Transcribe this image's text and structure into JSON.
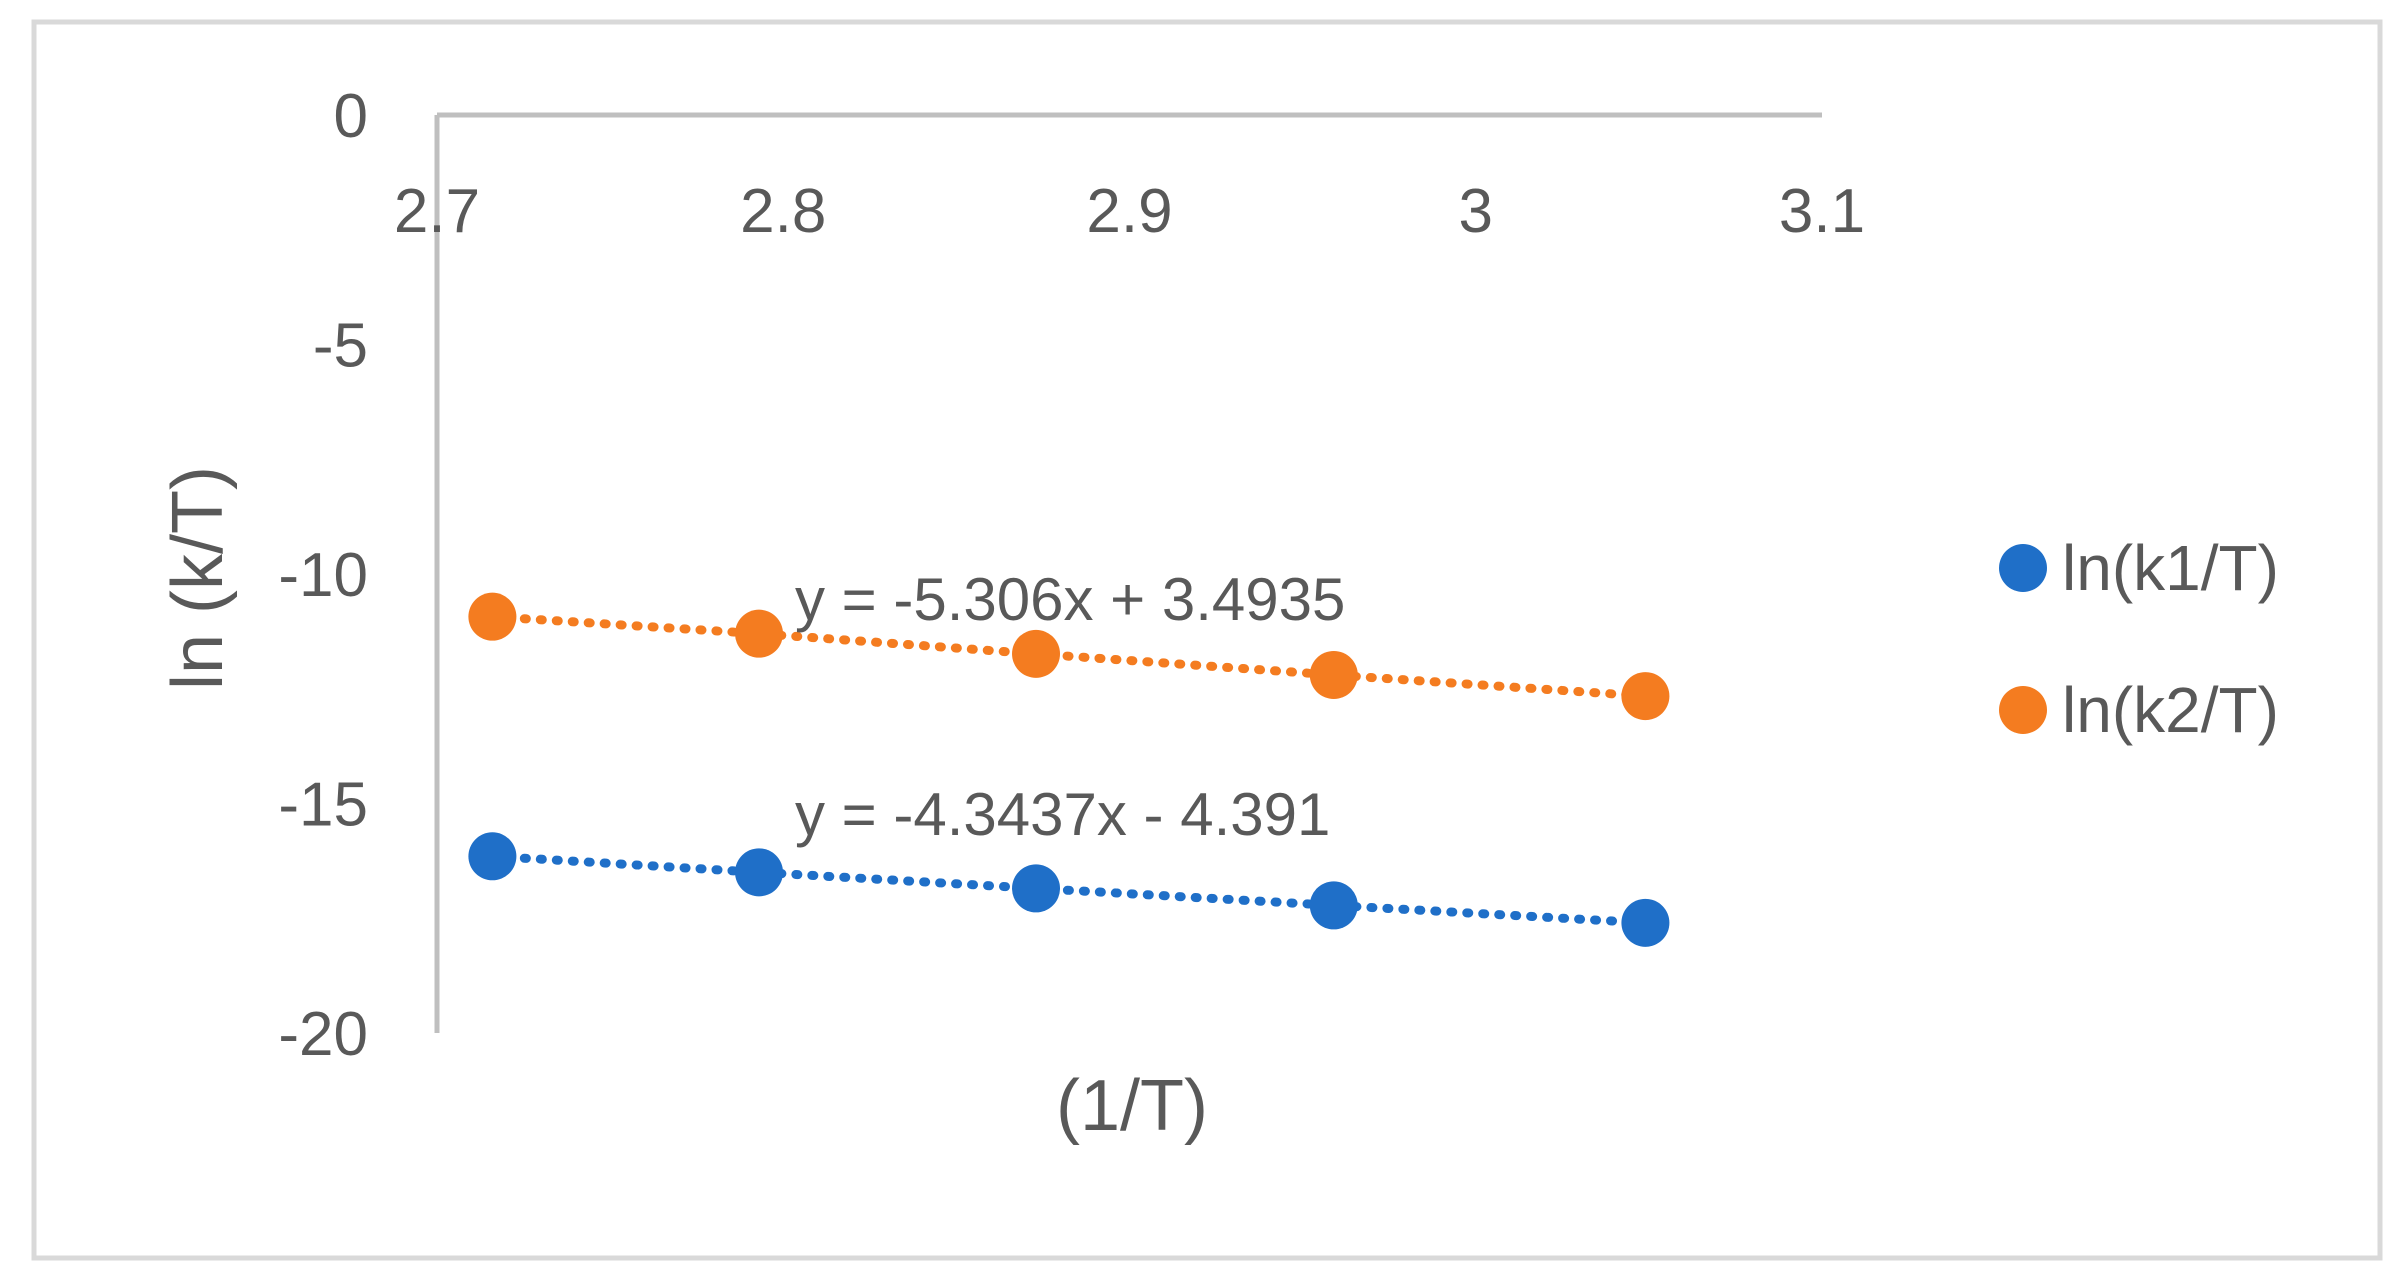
{
  "chart_data": {
    "type": "scatter",
    "title": "",
    "xlabel": "(1/T)",
    "ylabel": "ln (k/T)",
    "xlim": [
      2.7,
      3.1
    ],
    "ylim": [
      -20,
      0
    ],
    "x_axis_position": "top",
    "x_ticks": [
      "2.7",
      "2.8",
      "2.9",
      "3",
      "3.1"
    ],
    "y_ticks": [
      "0",
      "-5",
      "-10",
      "-15",
      "-20"
    ],
    "grid": false,
    "legend_position": "right",
    "series": [
      {
        "name": "ln(k1/T)",
        "color": "#1f6fc8",
        "x": [
          2.716,
          2.793,
          2.873,
          2.959,
          3.049
        ],
        "y": [
          -16.15,
          -16.5,
          -16.85,
          -17.22,
          -17.6
        ],
        "trendline": {
          "type": "linear",
          "style": "dotted",
          "equation": "y = -4.3437x - 4.391"
        }
      },
      {
        "name": "ln(k2/T)",
        "color": "#f47c20",
        "x": [
          2.716,
          2.793,
          2.873,
          2.959,
          3.049
        ],
        "y": [
          -10.93,
          -11.3,
          -11.74,
          -12.2,
          -12.66
        ],
        "trendline": {
          "type": "linear",
          "style": "dotted",
          "equation": "y = -5.306x + 3.4935"
        }
      }
    ]
  }
}
